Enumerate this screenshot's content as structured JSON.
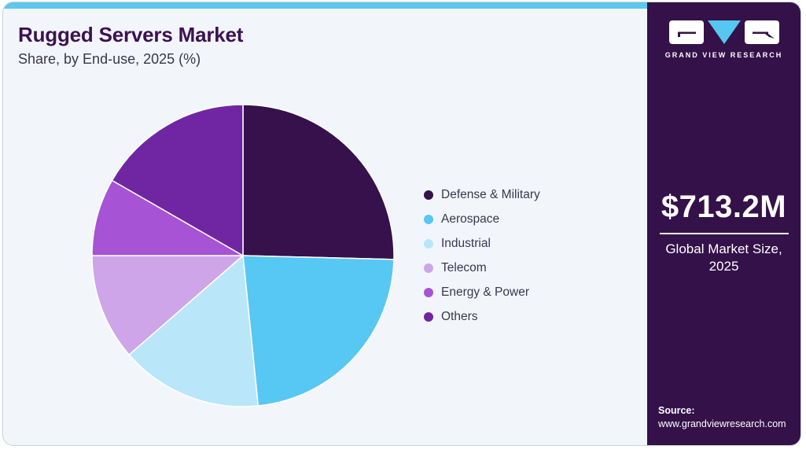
{
  "header": {
    "title": "Rugged Servers Market",
    "subtitle": "Share, by End-use, 2025 (%)"
  },
  "chart_data": {
    "type": "pie",
    "title": "Rugged Servers Market Share, by End-use, 2025 (%)",
    "categories": [
      "Defense & Military",
      "Aerospace",
      "Industrial",
      "Telecom",
      "Energy & Power",
      "Others"
    ],
    "values": [
      25.4,
      23.0,
      15.2,
      11.4,
      8.3,
      16.7
    ],
    "unit": "%",
    "colors": [
      "#36114b",
      "#57c7f4",
      "#b9e6f9",
      "#cda5e8",
      "#a653d6",
      "#7026a2"
    ],
    "legend_position": "right",
    "start_angle_deg": 0,
    "direction": "clockwise",
    "separator_color": "#ffffff"
  },
  "panel": {
    "brand": "GRAND VIEW RESEARCH",
    "market_size": "$713.2M",
    "market_caption": "Global Market Size, 2025",
    "source_label": "Source:",
    "source_url": "www.grandviewresearch.com",
    "background": "#341148"
  },
  "theme": {
    "card_background": "#f2f6fa",
    "top_strip": "#5cc8ee",
    "title_color": "#3d1152",
    "border_color": "#c5d3de",
    "legend_text_color": "#3b3650"
  }
}
